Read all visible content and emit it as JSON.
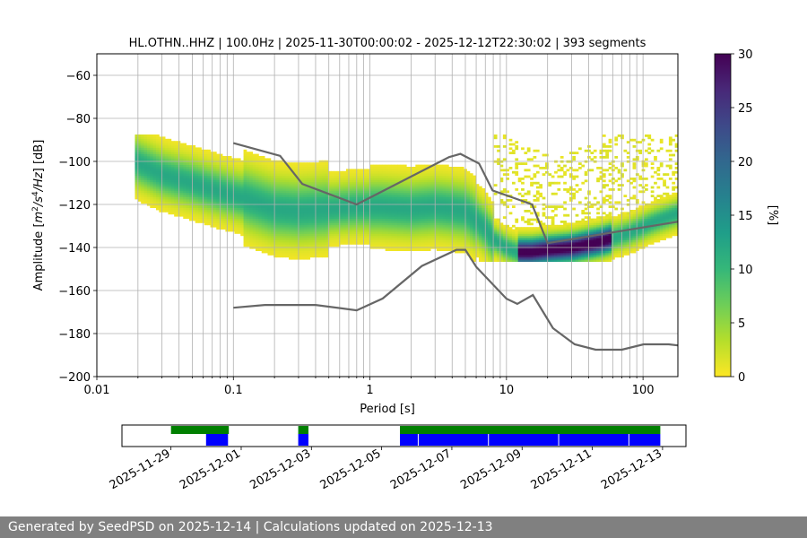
{
  "chart_data": [
    {
      "type": "heatmap",
      "title": "HL.OTHN..HHZ | 100.0Hz | 2025-11-30T00:00:02 - 2025-12-12T22:30:02 | 393 segments",
      "xlabel": "Period [s]",
      "ylabel": "Amplitude [$m^2/s^4/Hz$] [dB]",
      "ylabel_parts": [
        "Amplitude [",
        "m",
        "2",
        "/s",
        "4",
        "/Hz",
        "] [dB]"
      ],
      "x_scale": "log",
      "xlim": [
        0.01,
        180
      ],
      "ylim": [
        -200,
        -50
      ],
      "x_ticks": [
        0.01,
        0.1,
        1,
        10,
        100
      ],
      "x_tick_labels": [
        "0.01",
        "0.1",
        "1",
        "10",
        "100"
      ],
      "y_ticks": [
        -200,
        -180,
        -160,
        -140,
        -120,
        -100,
        -80,
        -60
      ],
      "y_tick_labels": [
        "−200",
        "−180",
        "−160",
        "−140",
        "−120",
        "−100",
        "−80",
        "−60"
      ],
      "grid": true,
      "colorbar": {
        "label": "[%]",
        "range": [
          0,
          30
        ],
        "ticks": [
          0,
          5,
          10,
          15,
          20,
          25,
          30
        ],
        "tick_labels": [
          "0",
          "5",
          "10",
          "15",
          "20",
          "25",
          "30"
        ],
        "colormap": [
          "#fde725",
          "#b5de2b",
          "#6ece58",
          "#35b779",
          "#1f9e89",
          "#26828e",
          "#31688e",
          "#3e4989",
          "#482878",
          "#440154"
        ]
      },
      "density_ridge": {
        "period": [
          0.019,
          0.03,
          0.05,
          0.08,
          0.12,
          0.2,
          0.3,
          0.5,
          0.8,
          1.2,
          2,
          3,
          4,
          5,
          6,
          7,
          8,
          10,
          12,
          15,
          20,
          30,
          50,
          80,
          120,
          180
        ],
        "amplitude_db": [
          -100,
          -106,
          -110,
          -114,
          -117,
          -122,
          -123,
          -122,
          -121,
          -121,
          -122,
          -121,
          -122,
          -123,
          -127,
          -131,
          -136,
          -140,
          -142,
          -142,
          -141,
          -140,
          -137,
          -133,
          -128,
          -124
        ]
      },
      "series": [
        {
          "name": "NHNM",
          "period": [
            0.1,
            0.22,
            0.32,
            0.8,
            3.8,
            4.6,
            6.3,
            7.9,
            15.4,
            20,
            180
          ],
          "amplitude_db": [
            -91.5,
            -97.4,
            -110.5,
            -120,
            -98,
            -96.5,
            -101,
            -113.5,
            -120,
            -138,
            -128
          ]
        },
        {
          "name": "NLNM",
          "period": [
            0.1,
            0.17,
            0.4,
            0.8,
            1.24,
            2.4,
            4.3,
            5,
            6,
            10,
            12,
            15.6,
            21.9,
            31.6,
            45,
            70,
            101,
            154,
            180
          ],
          "amplitude_db": [
            -168,
            -166.7,
            -166.7,
            -169.2,
            -163.7,
            -148.6,
            -141.1,
            -141.1,
            -149,
            -163.8,
            -166.2,
            -162.1,
            -177.5,
            -185,
            -187.5,
            -187.5,
            -185,
            -185,
            -185.5
          ]
        }
      ]
    },
    {
      "type": "bar",
      "title": "",
      "x_tick_labels": [
        "2025-11-29",
        "2025-12-01",
        "2025-12-03",
        "2025-12-05",
        "2025-12-07",
        "2025-12-09",
        "2025-12-11",
        "2025-12-13"
      ],
      "series": [
        {
          "name": "data available",
          "color": "#008000",
          "intervals": [
            [
              "2025-11-29T00:00",
              "2025-11-30T15:30"
            ],
            [
              "2025-12-02T15:00",
              "2025-12-02T22:00"
            ],
            [
              "2025-12-05T12:30",
              "2025-12-12T22:30"
            ]
          ]
        },
        {
          "name": "psd computed",
          "color": "#0000ff",
          "intervals": [
            [
              "2025-11-30T00:00",
              "2025-11-30T15:00"
            ],
            [
              "2025-12-02T15:00",
              "2025-12-02T22:00"
            ],
            [
              "2025-12-05T12:30",
              "2025-12-12T22:30"
            ]
          ]
        }
      ]
    }
  ],
  "footer": {
    "text": "Generated by SeedPSD on 2025-12-14 | Calculations updated on 2025-12-13"
  }
}
